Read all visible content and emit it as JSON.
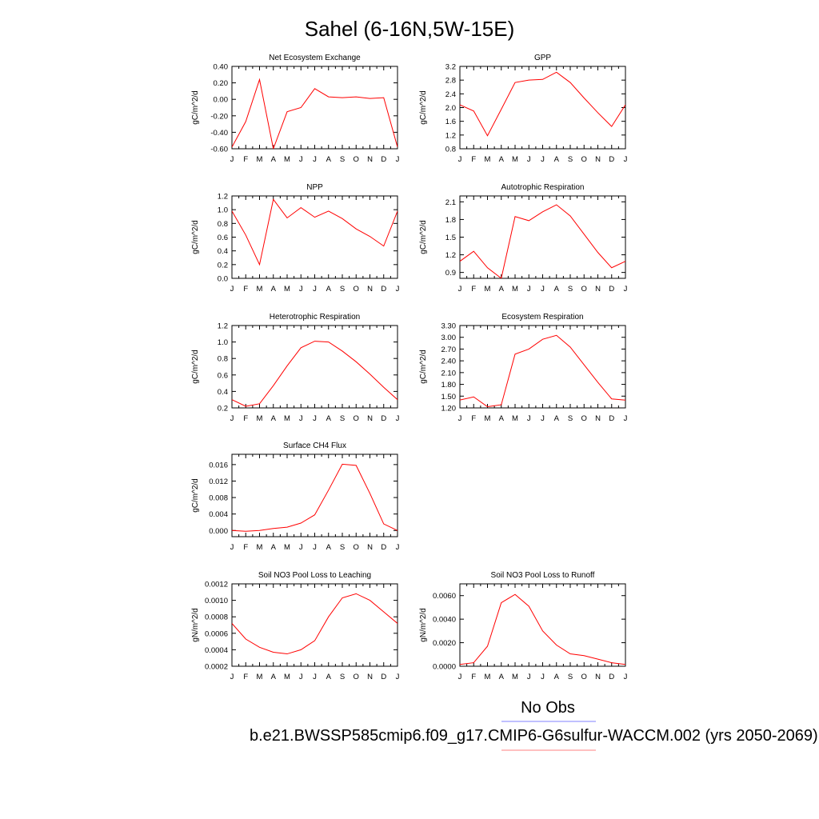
{
  "figure_title": "Sahel (6-16N,5W-15E)",
  "colors": {
    "model": "#ff0000",
    "obs": "#0000ff",
    "axes": "#000000"
  },
  "legend": {
    "entries": [
      {
        "label": "No Obs",
        "color": "#8080ff"
      },
      {
        "label": "b.e21.BWSSP585cmip6.f09_g17.CMIP6-G6sulfur-WACCM.002 (yrs 2050-2069)",
        "color": "#ff8080"
      }
    ]
  },
  "chart_data": [
    {
      "type": "line",
      "title": "Net Ecosystem Exchange",
      "ylabel": "gC/m^2/d",
      "categories": [
        "J",
        "F",
        "M",
        "A",
        "M",
        "J",
        "J",
        "A",
        "S",
        "O",
        "N",
        "D",
        "J"
      ],
      "ylim": [
        -0.6,
        0.4
      ],
      "yticks": [
        "0.40",
        "0.20",
        "0.00",
        "-0.20",
        "-0.40",
        "-0.60"
      ],
      "series": [
        {
          "values": [
            -0.58,
            -0.27,
            0.24,
            -0.6,
            -0.15,
            -0.1,
            0.13,
            0.03,
            0.02,
            0.03,
            0.01,
            0.02,
            -0.58
          ]
        }
      ]
    },
    {
      "type": "line",
      "title": "GPP",
      "ylabel": "gC/m^2/d",
      "categories": [
        "J",
        "F",
        "M",
        "A",
        "M",
        "J",
        "J",
        "A",
        "S",
        "O",
        "N",
        "D",
        "J"
      ],
      "ylim": [
        0.8,
        3.2
      ],
      "yticks": [
        "3.2",
        "2.8",
        "2.4",
        "2.0",
        "1.6",
        "1.2",
        "0.8"
      ],
      "series": [
        {
          "values": [
            2.08,
            1.9,
            1.18,
            1.95,
            2.73,
            2.8,
            2.82,
            3.03,
            2.73,
            2.28,
            1.85,
            1.45,
            2.08
          ]
        }
      ]
    },
    {
      "type": "line",
      "title": "NPP",
      "ylabel": "gC/m^2/d",
      "categories": [
        "J",
        "F",
        "M",
        "A",
        "M",
        "J",
        "J",
        "A",
        "S",
        "O",
        "N",
        "D",
        "J"
      ],
      "ylim": [
        0.0,
        1.2
      ],
      "yticks": [
        "1.2",
        "1.0",
        "0.8",
        "0.6",
        "0.4",
        "0.2",
        "0.0"
      ],
      "series": [
        {
          "values": [
            0.98,
            0.63,
            0.2,
            1.15,
            0.88,
            1.03,
            0.89,
            0.98,
            0.87,
            0.72,
            0.61,
            0.47,
            0.98
          ]
        }
      ]
    },
    {
      "type": "line",
      "title": "Autotrophic Respiration",
      "ylabel": "gC/m^2/d",
      "categories": [
        "J",
        "F",
        "M",
        "A",
        "M",
        "J",
        "J",
        "A",
        "S",
        "O",
        "N",
        "D",
        "J"
      ],
      "ylim": [
        0.8,
        2.2
      ],
      "yticks": [
        "2.1",
        "1.8",
        "1.5",
        "1.2",
        "0.9"
      ],
      "series": [
        {
          "values": [
            1.09,
            1.26,
            0.98,
            0.8,
            1.85,
            1.78,
            1.93,
            2.05,
            1.86,
            1.55,
            1.24,
            0.98,
            1.09
          ]
        }
      ]
    },
    {
      "type": "line",
      "title": "Heterotrophic Respiration",
      "ylabel": "gC/m^2/d",
      "categories": [
        "J",
        "F",
        "M",
        "A",
        "M",
        "J",
        "J",
        "A",
        "S",
        "O",
        "N",
        "D",
        "J"
      ],
      "ylim": [
        0.2,
        1.2
      ],
      "yticks": [
        "1.2",
        "1.0",
        "0.8",
        "0.6",
        "0.4",
        "0.2"
      ],
      "series": [
        {
          "values": [
            0.3,
            0.22,
            0.25,
            0.47,
            0.71,
            0.93,
            1.01,
            1.0,
            0.89,
            0.76,
            0.61,
            0.45,
            0.3
          ]
        }
      ]
    },
    {
      "type": "line",
      "title": "Ecosystem Respiration",
      "ylabel": "gC/m^2/d",
      "categories": [
        "J",
        "F",
        "M",
        "A",
        "M",
        "J",
        "J",
        "A",
        "S",
        "O",
        "N",
        "D",
        "J"
      ],
      "ylim": [
        1.2,
        3.3
      ],
      "yticks": [
        "3.30",
        "3.00",
        "2.70",
        "2.40",
        "2.10",
        "1.80",
        "1.50",
        "1.20"
      ],
      "series": [
        {
          "values": [
            1.4,
            1.48,
            1.23,
            1.28,
            2.57,
            2.7,
            2.95,
            3.05,
            2.75,
            2.3,
            1.85,
            1.43,
            1.4
          ]
        }
      ]
    },
    {
      "type": "line",
      "title": "Surface CH4 Flux",
      "ylabel": "gC/m^2/d",
      "categories": [
        "J",
        "F",
        "M",
        "A",
        "M",
        "J",
        "J",
        "A",
        "S",
        "O",
        "N",
        "D",
        "J"
      ],
      "ylim": [
        -0.0015,
        0.0185
      ],
      "yticks": [
        "0.016",
        "0.012",
        "0.008",
        "0.004",
        "0.000"
      ],
      "series": [
        {
          "values": [
            0.0,
            -0.0002,
            0.0,
            0.0005,
            0.0008,
            0.0018,
            0.0038,
            0.0098,
            0.0161,
            0.0158,
            0.009,
            0.0016,
            0.0
          ]
        }
      ]
    },
    {
      "type": "line",
      "title": "Soil NO3 Pool Loss to Leaching",
      "ylabel": "gN/m^2/d",
      "categories": [
        "J",
        "F",
        "M",
        "A",
        "M",
        "J",
        "J",
        "A",
        "S",
        "O",
        "N",
        "D",
        "J"
      ],
      "ylim": [
        0.0002,
        0.0012
      ],
      "yticks": [
        "0.0012",
        "0.0010",
        "0.0008",
        "0.0006",
        "0.0004",
        "0.0002"
      ],
      "series": [
        {
          "values": [
            0.00072,
            0.00053,
            0.00043,
            0.00037,
            0.00035,
            0.0004,
            0.00051,
            0.0008,
            0.00103,
            0.00108,
            0.001,
            0.00086,
            0.00072
          ]
        }
      ]
    },
    {
      "type": "line",
      "title": "Soil NO3 Pool Loss to Runoff",
      "ylabel": "gN/m^2/d",
      "categories": [
        "J",
        "F",
        "M",
        "A",
        "M",
        "J",
        "J",
        "A",
        "S",
        "O",
        "N",
        "D",
        "J"
      ],
      "ylim": [
        0.0,
        0.007
      ],
      "yticks": [
        "0.0060",
        "0.0040",
        "0.0020",
        "0.0000"
      ],
      "series": [
        {
          "values": [
            0.00015,
            0.0003,
            0.0017,
            0.0054,
            0.0061,
            0.0051,
            0.003,
            0.0018,
            0.00105,
            0.0009,
            0.0006,
            0.0003,
            0.00015
          ]
        }
      ]
    }
  ]
}
